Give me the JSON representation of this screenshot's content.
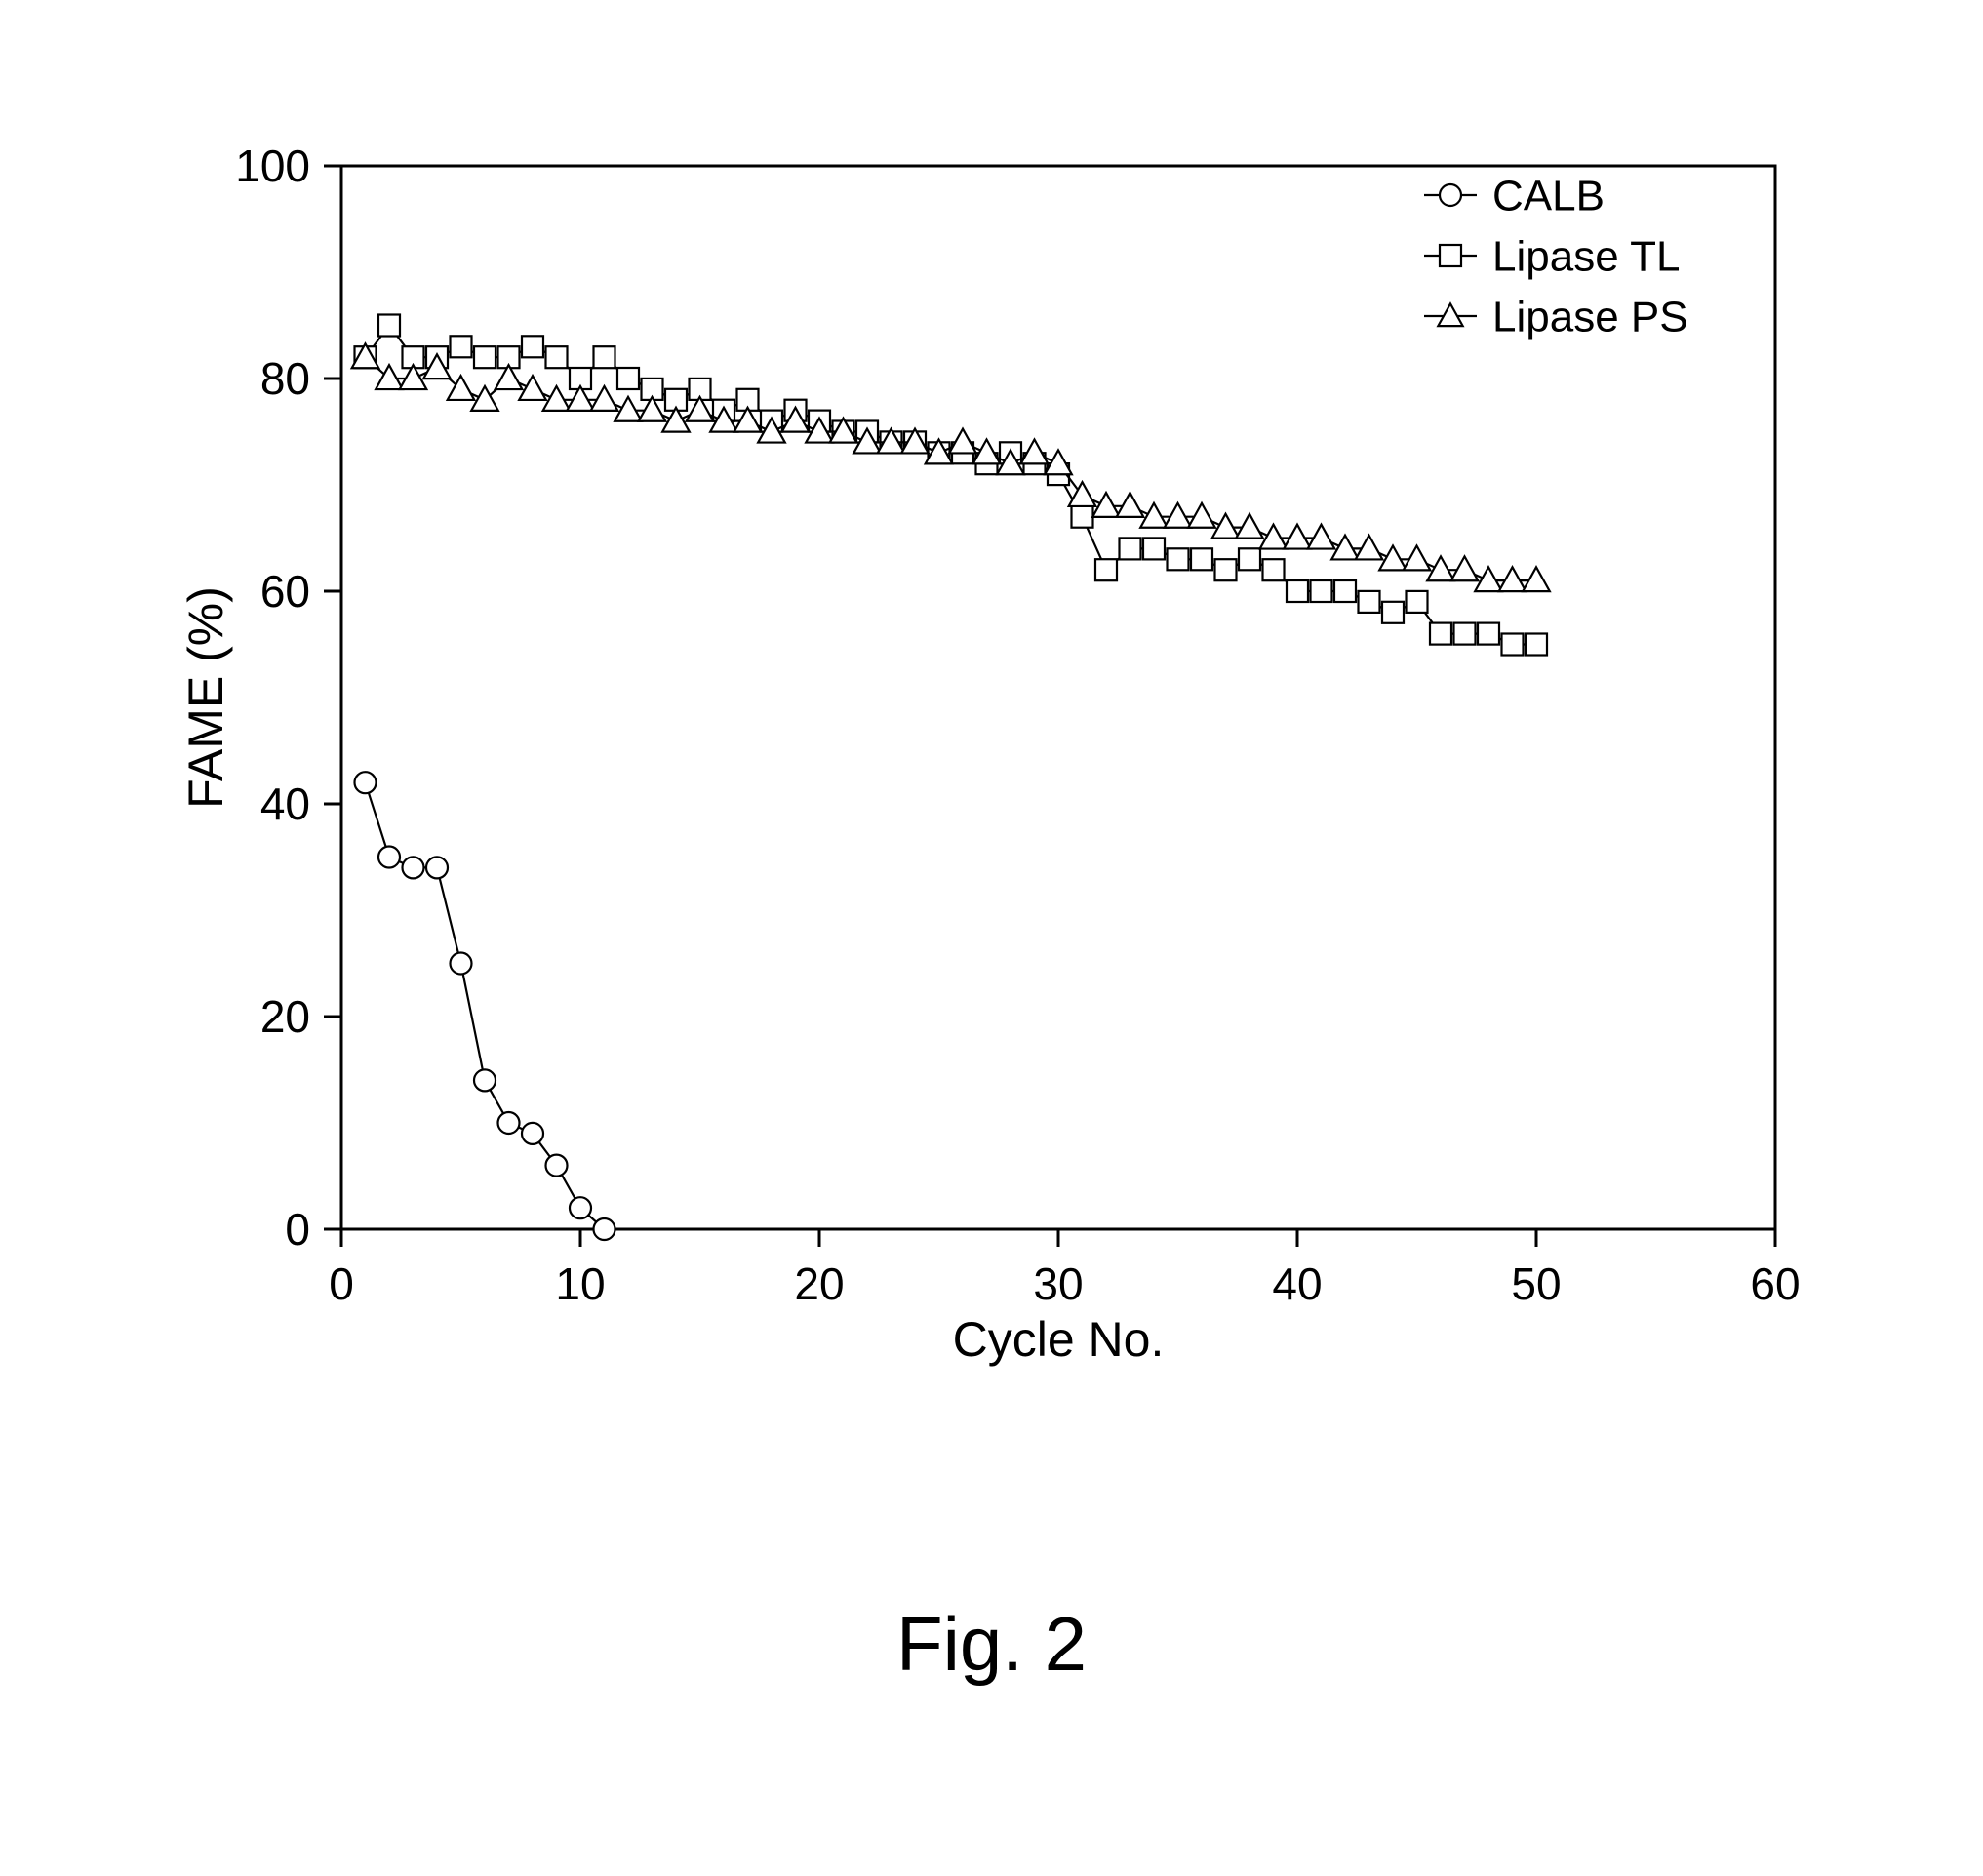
{
  "caption": "Fig. 2",
  "chart": {
    "type": "line-scatter",
    "background_color": "#ffffff",
    "axis_color": "#000000",
    "axis_line_width": 3,
    "tick_length": 18,
    "xlabel": "Cycle No.",
    "ylabel": "FAME (%)",
    "label_fontsize": 50,
    "tick_fontsize": 46,
    "xlim": [
      0,
      60
    ],
    "ylim": [
      0,
      100
    ],
    "xtick_step": 10,
    "ytick_step": 20,
    "xticks": [
      0,
      10,
      20,
      30,
      40,
      50,
      60
    ],
    "yticks": [
      0,
      20,
      40,
      60,
      80,
      100
    ],
    "legend": {
      "position": "top-right",
      "fontsize": 44,
      "items": [
        {
          "label": "CALB",
          "marker": "circle"
        },
        {
          "label": "Lipase TL",
          "marker": "square"
        },
        {
          "label": "Lipase PS",
          "marker": "triangle"
        }
      ]
    },
    "series": [
      {
        "name": "CALB",
        "marker": "circle",
        "marker_size": 11,
        "line_width": 2.2,
        "stroke": "#000000",
        "fill": "#ffffff",
        "x": [
          1,
          2,
          3,
          4,
          5,
          6,
          7,
          8,
          9,
          10,
          11
        ],
        "y": [
          42,
          35,
          34,
          34,
          25,
          14,
          10,
          9,
          6,
          2,
          0
        ]
      },
      {
        "name": "Lipase TL",
        "marker": "square",
        "marker_size": 11,
        "line_width": 2.2,
        "stroke": "#000000",
        "fill": "#ffffff",
        "x": [
          1,
          2,
          3,
          4,
          5,
          6,
          7,
          8,
          9,
          10,
          11,
          12,
          13,
          14,
          15,
          16,
          17,
          18,
          19,
          20,
          21,
          22,
          23,
          24,
          25,
          26,
          27,
          28,
          29,
          30,
          31,
          32,
          33,
          34,
          35,
          36,
          37,
          38,
          39,
          40,
          41,
          42,
          43,
          44,
          45,
          46,
          47,
          48,
          49,
          50
        ],
        "y": [
          82,
          85,
          82,
          82,
          83,
          82,
          82,
          83,
          82,
          80,
          82,
          80,
          79,
          78,
          79,
          77,
          78,
          76,
          77,
          76,
          75,
          75,
          74,
          74,
          73,
          73,
          72,
          73,
          72,
          71,
          67,
          62,
          64,
          64,
          63,
          63,
          62,
          63,
          62,
          60,
          60,
          60,
          59,
          58,
          59,
          56,
          56,
          56,
          55,
          55
        ]
      },
      {
        "name": "Lipase PS",
        "marker": "triangle",
        "marker_size": 12,
        "line_width": 2.2,
        "stroke": "#000000",
        "fill": "#ffffff",
        "x": [
          1,
          2,
          3,
          4,
          5,
          6,
          7,
          8,
          9,
          10,
          11,
          12,
          13,
          14,
          15,
          16,
          17,
          18,
          19,
          20,
          21,
          22,
          23,
          24,
          25,
          26,
          27,
          28,
          29,
          30,
          31,
          32,
          33,
          34,
          35,
          36,
          37,
          38,
          39,
          40,
          41,
          42,
          43,
          44,
          45,
          46,
          47,
          48,
          49,
          50
        ],
        "y": [
          82,
          80,
          80,
          81,
          79,
          78,
          80,
          79,
          78,
          78,
          78,
          77,
          77,
          76,
          77,
          76,
          76,
          75,
          76,
          75,
          75,
          74,
          74,
          74,
          73,
          74,
          73,
          72,
          73,
          72,
          69,
          68,
          68,
          67,
          67,
          67,
          66,
          66,
          65,
          65,
          65,
          64,
          64,
          63,
          63,
          62,
          62,
          61,
          61,
          61
        ]
      }
    ]
  }
}
